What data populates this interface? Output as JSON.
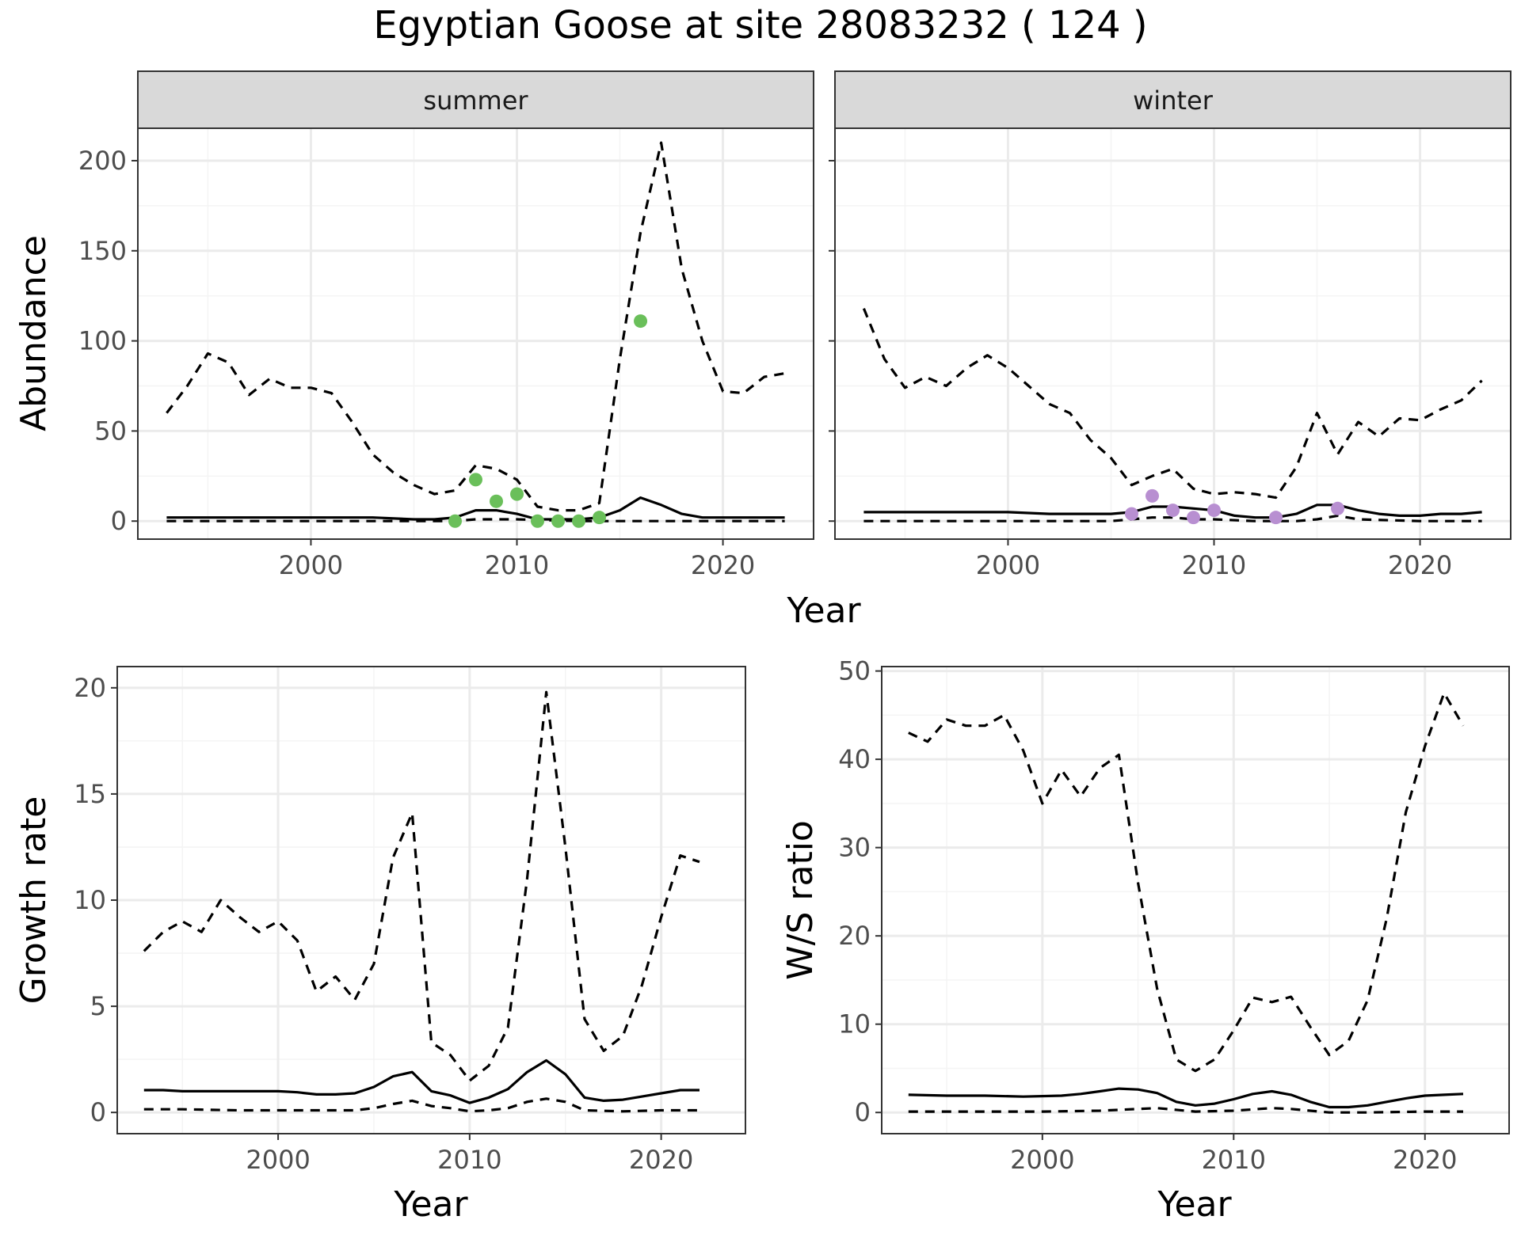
{
  "title": "Egyptian Goose at site 28083232 ( 124 )",
  "colors": {
    "summer_points": "#6abf5a",
    "winter_points": "#b88fd1",
    "lines": "#000000",
    "strip_bg": "#d9d9d9",
    "grid_major": "#ebebeb",
    "grid_minor": "#f4f4f4"
  },
  "chart_data": [
    {
      "id": "abundance_summer",
      "type": "line",
      "panel_label": "summer",
      "ylabel": "Abundance",
      "xlabel": "Year",
      "xlim": [
        1991.6,
        2024.4
      ],
      "ylim": [
        -10,
        218
      ],
      "x_ticks": [
        2000,
        2010,
        2020
      ],
      "y_ticks": [
        0,
        50,
        100,
        150,
        200
      ],
      "grid": true,
      "series": [
        {
          "role": "mean",
          "style": "solid",
          "x": [
            1993,
            1995,
            1997,
            1999,
            2001,
            2003,
            2005,
            2006,
            2007,
            2008,
            2009,
            2010,
            2011,
            2012,
            2013,
            2014,
            2015,
            2016,
            2017,
            2018,
            2019,
            2020,
            2021,
            2022,
            2023
          ],
          "y": [
            2,
            2,
            2,
            2,
            2,
            2,
            1,
            1,
            2,
            6,
            6,
            4,
            1,
            1,
            1,
            2,
            6,
            13,
            9,
            4,
            2,
            2,
            2,
            2,
            2
          ]
        },
        {
          "role": "upper",
          "style": "dashed",
          "x": [
            1993,
            1994,
            1995,
            1996,
            1997,
            1998,
            1999,
            2000,
            2001,
            2002,
            2003,
            2004,
            2005,
            2006,
            2007,
            2008,
            2009,
            2010,
            2011,
            2012,
            2013,
            2014,
            2015,
            2016,
            2017,
            2018,
            2019,
            2020,
            2021,
            2022,
            2023
          ],
          "y": [
            60,
            75,
            93,
            88,
            70,
            79,
            74,
            74,
            71,
            55,
            37,
            27,
            20,
            15,
            17,
            31,
            29,
            23,
            8,
            6,
            6,
            10,
            90,
            160,
            210,
            140,
            100,
            72,
            71,
            80,
            82
          ]
        },
        {
          "role": "lower",
          "style": "dashed",
          "x": [
            1993,
            2000,
            2005,
            2007,
            2008,
            2010,
            2013,
            2015,
            2017,
            2020,
            2023
          ],
          "y": [
            0,
            0,
            0,
            0,
            1,
            1,
            0,
            0,
            0,
            0,
            0
          ]
        },
        {
          "role": "observed",
          "style": "points",
          "x": [
            2007,
            2008,
            2009,
            2010,
            2011,
            2012,
            2013,
            2014,
            2016
          ],
          "y": [
            0,
            23,
            11,
            15,
            0,
            0,
            0,
            2,
            111
          ]
        }
      ]
    },
    {
      "id": "abundance_winter",
      "type": "line",
      "panel_label": "winter",
      "ylabel": "",
      "xlabel": "Year",
      "xlim": [
        1991.6,
        2024.4
      ],
      "ylim": [
        -10,
        218
      ],
      "x_ticks": [
        2000,
        2010,
        2020
      ],
      "y_ticks": [
        0,
        50,
        100,
        150,
        200
      ],
      "grid": true,
      "series": [
        {
          "role": "mean",
          "style": "solid",
          "x": [
            1993,
            1995,
            1998,
            2000,
            2002,
            2004,
            2005,
            2006,
            2007,
            2008,
            2009,
            2010,
            2011,
            2012,
            2013,
            2014,
            2015,
            2016,
            2017,
            2018,
            2019,
            2020,
            2021,
            2022,
            2023
          ],
          "y": [
            5,
            5,
            5,
            5,
            4,
            4,
            4,
            5,
            8,
            8,
            7,
            6,
            3,
            2,
            2,
            4,
            9,
            9,
            6,
            4,
            3,
            3,
            4,
            4,
            5
          ]
        },
        {
          "role": "upper",
          "style": "dashed",
          "x": [
            1993,
            1994,
            1995,
            1996,
            1997,
            1998,
            1999,
            2000,
            2001,
            2002,
            2003,
            2004,
            2005,
            2006,
            2007,
            2008,
            2009,
            2010,
            2011,
            2012,
            2013,
            2014,
            2015,
            2016,
            2017,
            2018,
            2019,
            2020,
            2021,
            2022,
            2023
          ],
          "y": [
            118,
            90,
            74,
            80,
            75,
            85,
            92,
            85,
            75,
            65,
            60,
            45,
            35,
            20,
            25,
            29,
            18,
            15,
            16,
            15,
            13,
            30,
            60,
            37,
            55,
            47,
            57,
            56,
            62,
            67,
            78
          ]
        },
        {
          "role": "lower",
          "style": "dashed",
          "x": [
            1993,
            2000,
            2005,
            2006,
            2007,
            2008,
            2009,
            2010,
            2012,
            2014,
            2015,
            2016,
            2017,
            2020,
            2023
          ],
          "y": [
            0,
            0,
            0,
            1,
            2,
            2,
            1,
            1,
            0,
            0,
            1,
            3,
            1,
            0,
            0
          ]
        },
        {
          "role": "observed",
          "style": "points",
          "x": [
            2006,
            2007,
            2008,
            2009,
            2010,
            2013,
            2016
          ],
          "y": [
            4,
            14,
            6,
            2,
            6,
            2,
            7
          ]
        }
      ]
    },
    {
      "id": "growth_rate",
      "type": "line",
      "ylabel": "Growth rate",
      "xlabel": "Year",
      "xlim": [
        1991.6,
        2024.4
      ],
      "ylim": [
        -1,
        21
      ],
      "x_ticks": [
        2000,
        2010,
        2020
      ],
      "y_ticks": [
        0,
        5,
        10,
        15,
        20
      ],
      "grid": true,
      "series": [
        {
          "role": "mean",
          "style": "solid",
          "x": [
            1993,
            1994,
            1995,
            1996,
            1997,
            1998,
            1999,
            2000,
            2001,
            2002,
            2003,
            2004,
            2005,
            2006,
            2007,
            2008,
            2009,
            2010,
            2011,
            2012,
            2013,
            2014,
            2015,
            2016,
            2017,
            2018,
            2019,
            2020,
            2021,
            2022
          ],
          "y": [
            1.05,
            1.05,
            1.0,
            1.0,
            1.0,
            1.0,
            1.0,
            1.0,
            0.95,
            0.85,
            0.85,
            0.9,
            1.2,
            1.7,
            1.9,
            1.0,
            0.8,
            0.45,
            0.7,
            1.1,
            1.9,
            2.45,
            1.8,
            0.7,
            0.55,
            0.6,
            0.75,
            0.9,
            1.05,
            1.05
          ]
        },
        {
          "role": "upper",
          "style": "dashed",
          "x": [
            1993,
            1994,
            1995,
            1996,
            1997,
            1998,
            1999,
            2000,
            2001,
            2002,
            2003,
            2004,
            2005,
            2006,
            2007,
            2008,
            2009,
            2010,
            2011,
            2012,
            2013,
            2014,
            2015,
            2016,
            2017,
            2018,
            2019,
            2020,
            2021,
            2022
          ],
          "y": [
            7.6,
            8.5,
            9.0,
            8.5,
            10.0,
            9.2,
            8.5,
            9.0,
            8.1,
            5.7,
            6.4,
            5.3,
            7.0,
            12.0,
            14.1,
            3.3,
            2.7,
            1.5,
            2.2,
            4.0,
            11.0,
            19.8,
            12.5,
            4.4,
            2.9,
            3.6,
            6.0,
            9.2,
            12.1,
            11.8
          ]
        },
        {
          "role": "lower",
          "style": "dashed",
          "x": [
            1993,
            1995,
            1998,
            2000,
            2004,
            2005,
            2006,
            2007,
            2008,
            2009,
            2010,
            2011,
            2012,
            2013,
            2014,
            2015,
            2016,
            2018,
            2020,
            2022
          ],
          "y": [
            0.15,
            0.15,
            0.1,
            0.1,
            0.1,
            0.2,
            0.4,
            0.55,
            0.3,
            0.2,
            0.05,
            0.1,
            0.2,
            0.5,
            0.65,
            0.5,
            0.1,
            0.05,
            0.1,
            0.1
          ]
        }
      ]
    },
    {
      "id": "ws_ratio",
      "type": "line",
      "ylabel": "W/S ratio",
      "xlabel": "Year",
      "xlim": [
        1991.6,
        2024.4
      ],
      "ylim": [
        -2.4,
        50.5
      ],
      "x_ticks": [
        2000,
        2010,
        2020
      ],
      "y_ticks": [
        0,
        10,
        20,
        30,
        40,
        50
      ],
      "grid": true,
      "series": [
        {
          "role": "mean",
          "style": "solid",
          "x": [
            1993,
            1995,
            1997,
            1999,
            2001,
            2002,
            2003,
            2004,
            2005,
            2006,
            2007,
            2008,
            2009,
            2010,
            2011,
            2012,
            2013,
            2014,
            2015,
            2016,
            2017,
            2018,
            2019,
            2020,
            2021,
            2022
          ],
          "y": [
            2.0,
            1.9,
            1.9,
            1.8,
            1.9,
            2.1,
            2.4,
            2.7,
            2.6,
            2.2,
            1.2,
            0.8,
            1.0,
            1.5,
            2.1,
            2.4,
            2.0,
            1.2,
            0.6,
            0.6,
            0.8,
            1.2,
            1.6,
            1.9,
            2.0,
            2.1
          ]
        },
        {
          "role": "upper",
          "style": "dashed",
          "x": [
            1993,
            1994,
            1995,
            1996,
            1997,
            1998,
            1999,
            2000,
            2001,
            2002,
            2003,
            2004,
            2005,
            2006,
            2007,
            2008,
            2009,
            2010,
            2011,
            2012,
            2013,
            2014,
            2015,
            2016,
            2017,
            2018,
            2019,
            2020,
            2021,
            2022
          ],
          "y": [
            43,
            42,
            44.5,
            43.8,
            43.8,
            45,
            41,
            35,
            38.8,
            35.8,
            39,
            40.5,
            26,
            14,
            6,
            4.7,
            6,
            9.3,
            13,
            12.5,
            13.1,
            9.7,
            6.5,
            8.1,
            12.7,
            22,
            34,
            41.5,
            47.5,
            43.8
          ]
        },
        {
          "role": "lower",
          "style": "dashed",
          "x": [
            1993,
            2000,
            2003,
            2005,
            2006,
            2008,
            2010,
            2012,
            2013,
            2015,
            2017,
            2020,
            2022
          ],
          "y": [
            0.1,
            0.1,
            0.2,
            0.4,
            0.5,
            0.1,
            0.2,
            0.5,
            0.4,
            0.0,
            0.0,
            0.1,
            0.1
          ]
        }
      ]
    }
  ]
}
